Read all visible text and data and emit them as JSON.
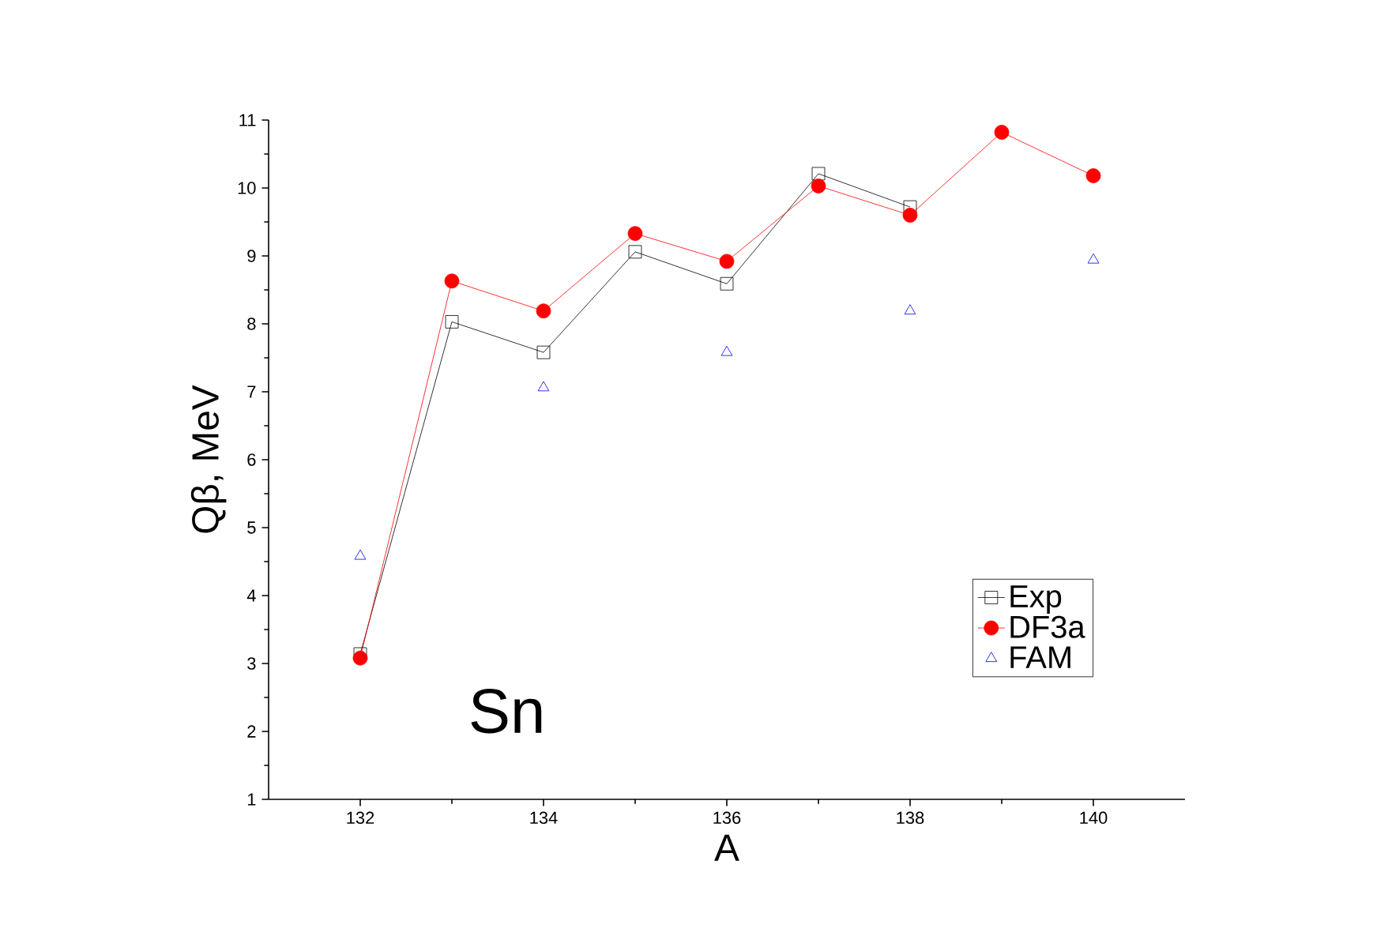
{
  "chart_data": {
    "type": "line",
    "xlabel": "A",
    "ylabel": "Qβ, MeV",
    "x": [
      132,
      133,
      134,
      135,
      136,
      137,
      138,
      139,
      140
    ],
    "series": [
      {
        "name": "Exp",
        "color": "#000000",
        "marker": "square",
        "values": [
          3.14,
          8.03,
          7.58,
          9.06,
          8.59,
          10.21,
          9.72,
          null,
          null
        ]
      },
      {
        "name": "DF3a",
        "color": "#ff0000",
        "marker": "circle",
        "values": [
          3.08,
          8.63,
          8.19,
          9.33,
          8.92,
          10.03,
          9.6,
          10.82,
          10.18
        ]
      },
      {
        "name": "FAM",
        "type": "scatter",
        "color": "#0000ff",
        "marker": "triangle",
        "values": [
          4.58,
          null,
          7.06,
          null,
          7.58,
          null,
          8.19,
          null,
          8.94
        ]
      }
    ],
    "xlim": [
      131,
      141
    ],
    "xticks": [
      132,
      134,
      136,
      138,
      140
    ],
    "ylim": [
      1,
      11
    ],
    "yticks": [
      1,
      2,
      3,
      4,
      5,
      6,
      7,
      8,
      9,
      10,
      11
    ],
    "legend": "bottom right",
    "grid": false,
    "annotations": [
      "Sn"
    ]
  }
}
